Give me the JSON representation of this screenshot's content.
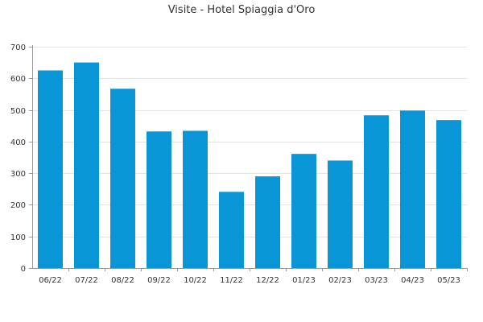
{
  "chart_data": {
    "type": "bar",
    "title": "Visite - Hotel Spiaggia d'Oro",
    "xlabel": "",
    "ylabel": "",
    "categories": [
      "06/22",
      "07/22",
      "08/22",
      "09/22",
      "10/22",
      "11/22",
      "12/22",
      "01/23",
      "02/23",
      "03/23",
      "04/23",
      "05/23"
    ],
    "values": [
      625,
      650,
      567,
      432,
      434,
      241,
      290,
      361,
      340,
      483,
      498,
      468
    ],
    "ylim": [
      0,
      700
    ],
    "yticks": [
      0,
      100,
      200,
      300,
      400,
      500,
      600,
      700
    ],
    "grid": true,
    "legend": "none",
    "colors": {
      "bar": "#0a95d6",
      "grid": "#e3e3e3",
      "axis": "#999999",
      "text": "#333333"
    }
  }
}
